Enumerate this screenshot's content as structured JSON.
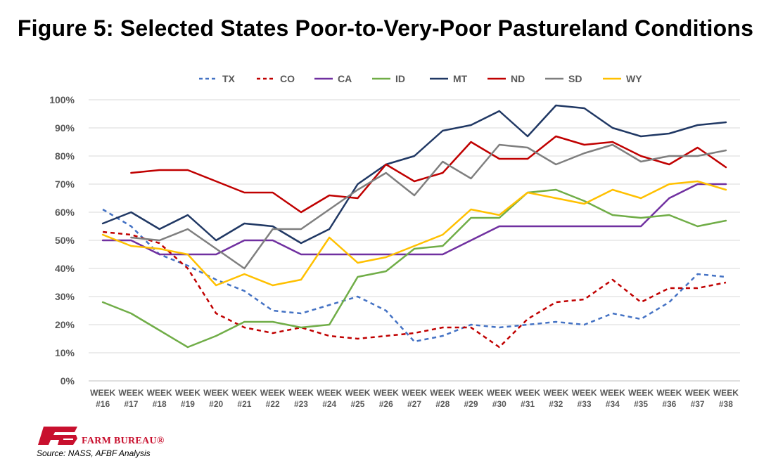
{
  "title": "Figure 5: Selected States Poor-to-Very-Poor Pastureland Conditions",
  "source": "Source: NASS, AFBF Analysis",
  "brand": {
    "name": "FARM BUREAU®",
    "logo_color": "#c8102e"
  },
  "chart_data": {
    "type": "line",
    "title": "Figure 5: Selected States Poor-to-Very-Poor Pastureland Conditions",
    "xlabel": "",
    "ylabel": "",
    "ylim": [
      0,
      100
    ],
    "yticks": [
      "0%",
      "10%",
      "20%",
      "30%",
      "40%",
      "50%",
      "60%",
      "70%",
      "80%",
      "90%",
      "100%"
    ],
    "grid": true,
    "legend_position": "top",
    "categories": [
      [
        "WEEK",
        "#16"
      ],
      [
        "WEEK",
        "#17"
      ],
      [
        "WEEK",
        "#18"
      ],
      [
        "WEEK",
        "#19"
      ],
      [
        "WEEK",
        "#20"
      ],
      [
        "WEEK",
        "#21"
      ],
      [
        "WEEK",
        "#22"
      ],
      [
        "WEEK",
        "#23"
      ],
      [
        "WEEK",
        "#24"
      ],
      [
        "WEEK",
        "#25"
      ],
      [
        "WEEK",
        "#26"
      ],
      [
        "WEEK",
        "#27"
      ],
      [
        "WEEK",
        "#28"
      ],
      [
        "WEEK",
        "#29"
      ],
      [
        "WEEK",
        "#30"
      ],
      [
        "WEEK",
        "#31"
      ],
      [
        "WEEK",
        "#32"
      ],
      [
        "WEEK",
        "#33"
      ],
      [
        "WEEK",
        "#34"
      ],
      [
        "WEEK",
        "#35"
      ],
      [
        "WEEK",
        "#36"
      ],
      [
        "WEEK",
        "#37"
      ],
      [
        "WEEK",
        "#38"
      ]
    ],
    "series": [
      {
        "name": "TX",
        "color": "#4472c4",
        "dashed": true,
        "values": [
          61,
          55,
          45,
          41,
          36,
          32,
          25,
          24,
          27,
          30,
          25,
          14,
          16,
          20,
          19,
          20,
          21,
          20,
          24,
          22,
          28,
          38,
          37
        ]
      },
      {
        "name": "CO",
        "color": "#c00000",
        "dashed": true,
        "values": [
          53,
          52,
          49,
          40,
          24,
          19,
          17,
          19,
          16,
          15,
          16,
          17,
          19,
          19,
          12,
          22,
          28,
          29,
          36,
          28,
          33,
          33,
          35
        ]
      },
      {
        "name": "CA",
        "color": "#7030a0",
        "dashed": false,
        "values": [
          50,
          50,
          45,
          45,
          45,
          50,
          50,
          45,
          45,
          45,
          45,
          45,
          45,
          50,
          55,
          55,
          55,
          55,
          55,
          55,
          65,
          70,
          70
        ]
      },
      {
        "name": "ID",
        "color": "#70ad47",
        "dashed": false,
        "values": [
          28,
          24,
          18,
          12,
          16,
          21,
          21,
          19,
          20,
          37,
          39,
          47,
          48,
          58,
          58,
          67,
          68,
          64,
          59,
          58,
          59,
          55,
          57
        ]
      },
      {
        "name": "MT",
        "color": "#203864",
        "dashed": false,
        "values": [
          56,
          60,
          54,
          59,
          50,
          56,
          55,
          49,
          54,
          70,
          77,
          80,
          89,
          91,
          96,
          87,
          98,
          97,
          90,
          87,
          88,
          91,
          92
        ]
      },
      {
        "name": "ND",
        "color": "#c00000",
        "dashed": false,
        "values": [
          null,
          74,
          75,
          75,
          71,
          67,
          67,
          60,
          66,
          65,
          77,
          71,
          74,
          85,
          79,
          79,
          87,
          84,
          85,
          80,
          77,
          83,
          76
        ]
      },
      {
        "name": "SD",
        "color": "#7f7f7f",
        "dashed": false,
        "values": [
          null,
          51,
          50,
          54,
          47,
          40,
          54,
          54,
          61,
          68,
          74,
          66,
          78,
          72,
          84,
          83,
          77,
          81,
          84,
          78,
          80,
          80,
          82
        ]
      },
      {
        "name": "WY",
        "color": "#ffc000",
        "dashed": false,
        "values": [
          52,
          48,
          47,
          45,
          34,
          38,
          34,
          36,
          51,
          42,
          44,
          48,
          52,
          61,
          59,
          67,
          65,
          63,
          68,
          65,
          70,
          71,
          68
        ]
      }
    ]
  }
}
